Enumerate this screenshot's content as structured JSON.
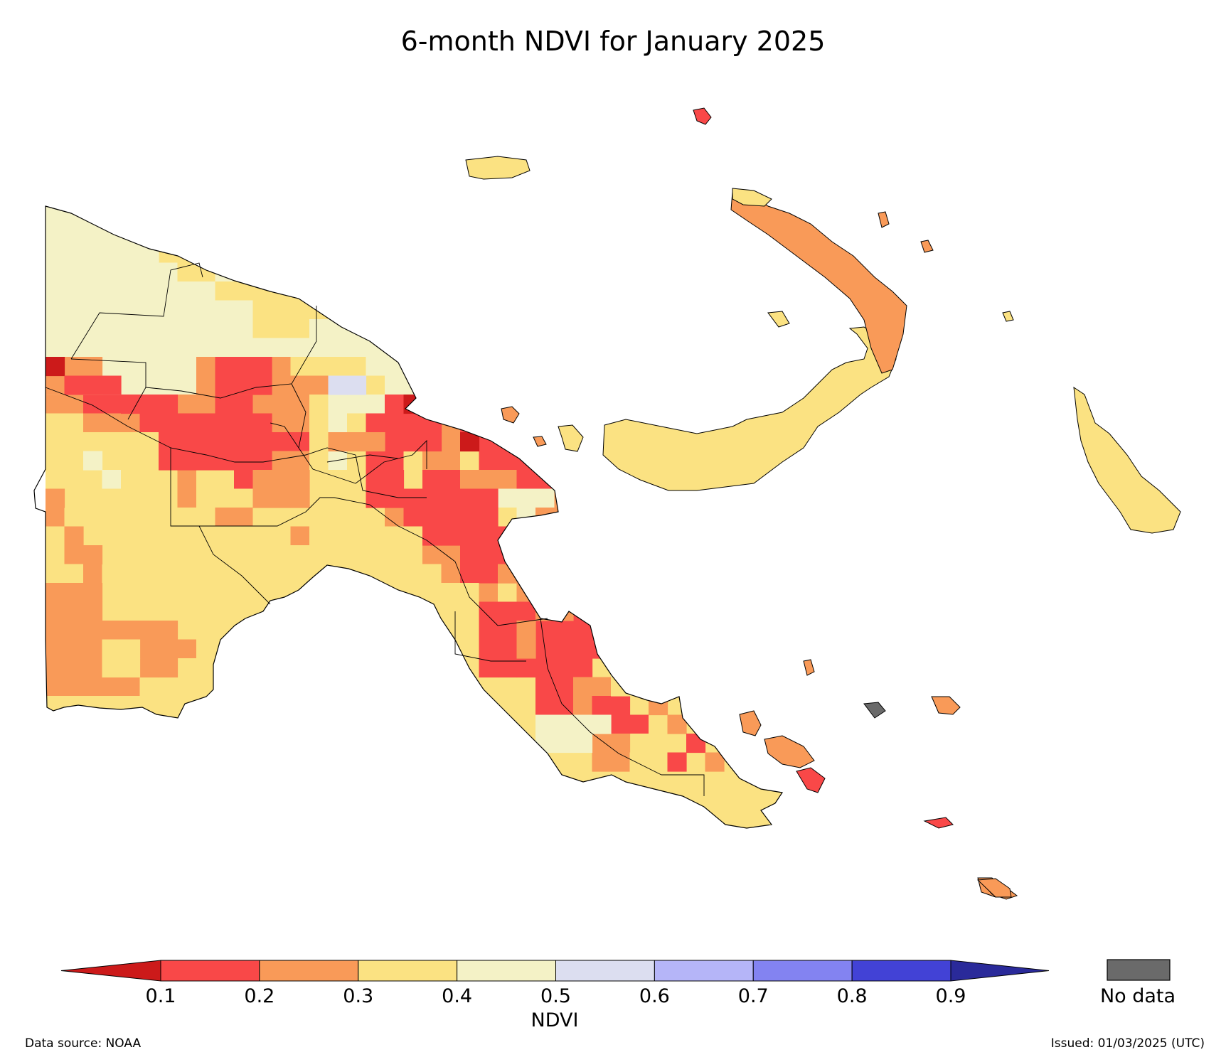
{
  "title": "6-month NDVI for January 2025",
  "colorbar": {
    "label": "NDVI",
    "ticks": [
      "0.1",
      "0.2",
      "0.3",
      "0.4",
      "0.5",
      "0.6",
      "0.7",
      "0.8",
      "0.9"
    ],
    "bins": [
      {
        "range": "<0.1",
        "color": "#cc1a1a"
      },
      {
        "range": "0.1-0.2",
        "color": "#f94848"
      },
      {
        "range": "0.2-0.3",
        "color": "#f99a58"
      },
      {
        "range": "0.3-0.4",
        "color": "#fbe282"
      },
      {
        "range": "0.4-0.5",
        "color": "#f4f2c6"
      },
      {
        "range": "0.5-0.6",
        "color": "#dcdef0"
      },
      {
        "range": "0.6-0.7",
        "color": "#b5b5f8"
      },
      {
        "range": "0.7-0.8",
        "color": "#8383f1"
      },
      {
        "range": "0.8-0.9",
        "color": "#4242d6"
      },
      {
        "range": ">0.9",
        "color": "#2a2a9a"
      }
    ],
    "no_data_label": "No data",
    "no_data_color": "#6a6a6a"
  },
  "footer": {
    "source": "Data source: NOAA",
    "issued": "Issued: 01/03/2025 (UTC)"
  }
}
